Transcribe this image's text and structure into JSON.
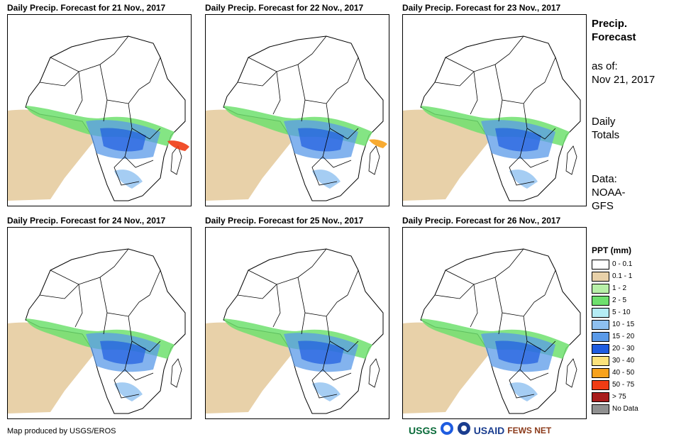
{
  "panels": [
    {
      "title": "Daily Precip. Forecast for 21 Nov., 2017"
    },
    {
      "title": "Daily Precip. Forecast for 22 Nov., 2017"
    },
    {
      "title": "Daily Precip. Forecast for 23 Nov., 2017"
    },
    {
      "title": "Daily Precip. Forecast for 24 Nov., 2017"
    },
    {
      "title": "Daily Precip. Forecast for 25 Nov., 2017"
    },
    {
      "title": "Daily Precip. Forecast for 26 Nov., 2017"
    }
  ],
  "side": {
    "heading_line1": "Precip.",
    "heading_line2": "Forecast",
    "asof_label": "as of:",
    "asof_date": "Nov 21, 2017",
    "totals_line1": "Daily",
    "totals_line2": "Totals",
    "data_label": "Data:",
    "data_line1": "NOAA-",
    "data_line2": "GFS"
  },
  "legend": {
    "title": "PPT (mm)",
    "items": [
      {
        "label": "0 - 0.1",
        "color": "#ffffff"
      },
      {
        "label": "0.1 - 1",
        "color": "#e8d1a9"
      },
      {
        "label": "1 - 2",
        "color": "#b8f0a8"
      },
      {
        "label": "2 - 5",
        "color": "#6ee06e"
      },
      {
        "label": "5 - 10",
        "color": "#b4ecf4"
      },
      {
        "label": "10 - 15",
        "color": "#8ec0f0"
      },
      {
        "label": "15 - 20",
        "color": "#5a9ae8"
      },
      {
        "label": "20 - 30",
        "color": "#1e5ce0"
      },
      {
        "label": "30 - 40",
        "color": "#fce27a"
      },
      {
        "label": "40 - 50",
        "color": "#f7a21c"
      },
      {
        "label": "50 - 75",
        "color": "#f03c14"
      },
      {
        "label": "> 75",
        "color": "#a81c1c"
      },
      {
        "label": "No Data",
        "color": "#909090"
      }
    ]
  },
  "footer": {
    "credit": "Map produced by USGS/EROS"
  },
  "logos": {
    "usgs": "USGS",
    "usaid": "USAID",
    "fewsnet": "FEWS NET"
  }
}
